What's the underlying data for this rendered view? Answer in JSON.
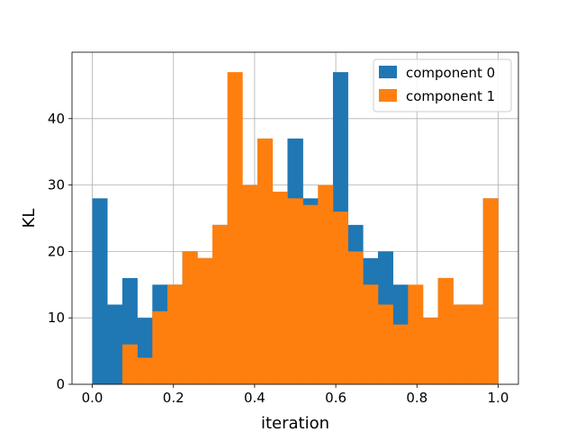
{
  "chart_data": {
    "type": "bar",
    "histogram": true,
    "xlabel": "iteration",
    "ylabel": "KL",
    "xlim": [
      -0.05,
      1.05
    ],
    "ylim": [
      0,
      50
    ],
    "xticks": [
      "0.0",
      "0.2",
      "0.4",
      "0.6",
      "0.8",
      "1.0"
    ],
    "xtick_values": [
      0,
      0.2,
      0.4,
      0.6,
      0.8,
      1.0
    ],
    "yticks": [
      "0",
      "10",
      "20",
      "30",
      "40"
    ],
    "ytick_values": [
      0,
      10,
      20,
      30,
      40
    ],
    "grid": true,
    "legend_position": "top-right",
    "bin_edges": [
      0.0,
      0.037,
      0.074,
      0.111,
      0.148,
      0.185,
      0.222,
      0.259,
      0.296,
      0.333,
      0.37,
      0.407,
      0.444,
      0.481,
      0.519,
      0.556,
      0.593,
      0.63,
      0.667,
      0.704,
      0.741,
      0.778,
      0.815,
      0.852,
      0.889,
      0.926,
      0.963,
      1.0
    ],
    "series": [
      {
        "name": "component 0",
        "color": "#1f77b4",
        "values": [
          28,
          12,
          16,
          10,
          15,
          15,
          20,
          19,
          24,
          30,
          30,
          37,
          29,
          37,
          28,
          19,
          47,
          24,
          19,
          20,
          15,
          10,
          10,
          16,
          12,
          12,
          28
        ]
      },
      {
        "name": "component 1",
        "color": "#ff7f0e",
        "values": [
          0,
          0,
          6,
          4,
          11,
          15,
          20,
          19,
          24,
          47,
          30,
          37,
          29,
          28,
          27,
          30,
          26,
          20,
          15,
          12,
          9,
          15,
          10,
          16,
          12,
          12,
          28
        ]
      }
    ]
  }
}
